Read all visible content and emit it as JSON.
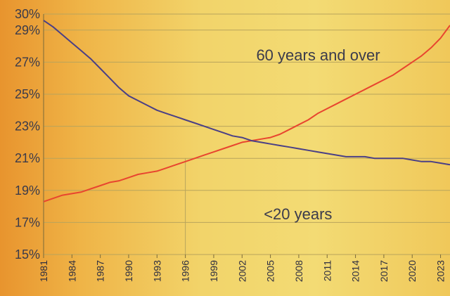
{
  "chart_data": {
    "type": "line",
    "x": [
      1981,
      1982,
      1983,
      1984,
      1985,
      1986,
      1987,
      1988,
      1989,
      1990,
      1991,
      1992,
      1993,
      1994,
      1995,
      1996,
      1997,
      1998,
      1999,
      2000,
      2001,
      2002,
      2003,
      2004,
      2005,
      2006,
      2007,
      2008,
      2009,
      2010,
      2011,
      2012,
      2013,
      2014,
      2015,
      2016,
      2017,
      2018,
      2019,
      2020,
      2021,
      2022,
      2023,
      2024
    ],
    "series": [
      {
        "name": "60 years and over",
        "color": "#e8452f",
        "values": [
          18.3,
          18.5,
          18.7,
          18.8,
          18.9,
          19.1,
          19.3,
          19.5,
          19.6,
          19.8,
          20.0,
          20.1,
          20.2,
          20.4,
          20.6,
          20.8,
          21.0,
          21.2,
          21.4,
          21.6,
          21.8,
          22.0,
          22.1,
          22.2,
          22.3,
          22.5,
          22.8,
          23.1,
          23.4,
          23.8,
          24.1,
          24.4,
          24.7,
          25.0,
          25.3,
          25.6,
          25.9,
          26.2,
          26.6,
          27.0,
          27.4,
          27.9,
          28.5,
          29.3
        ]
      },
      {
        "name": "<20 years",
        "color": "#4a3f86",
        "values": [
          29.6,
          29.2,
          28.7,
          28.2,
          27.7,
          27.2,
          26.6,
          26.0,
          25.4,
          24.9,
          24.6,
          24.3,
          24.0,
          23.8,
          23.6,
          23.4,
          23.2,
          23.0,
          22.8,
          22.6,
          22.4,
          22.3,
          22.1,
          22.0,
          21.9,
          21.8,
          21.7,
          21.6,
          21.5,
          21.4,
          21.3,
          21.2,
          21.1,
          21.1,
          21.1,
          21.0,
          21.0,
          21.0,
          21.0,
          20.9,
          20.8,
          20.8,
          20.7,
          20.6
        ]
      }
    ],
    "y_ticks": [
      "15%",
      "17%",
      "19%",
      "21%",
      "23%",
      "25%",
      "27%",
      "29%",
      "30%"
    ],
    "y_tick_values": [
      15,
      17,
      19,
      21,
      23,
      25,
      27,
      29,
      30
    ],
    "x_ticks": [
      "1981",
      "1984",
      "1987",
      "1990",
      "1993",
      "1996",
      "1999",
      "2002",
      "2005",
      "2008",
      "2011",
      "2014",
      "2017",
      "2020",
      "2023"
    ],
    "ylim": [
      15,
      30
    ],
    "xlim": [
      1981,
      2024
    ],
    "grid": true,
    "title": "",
    "xlabel": "",
    "ylabel": ""
  }
}
